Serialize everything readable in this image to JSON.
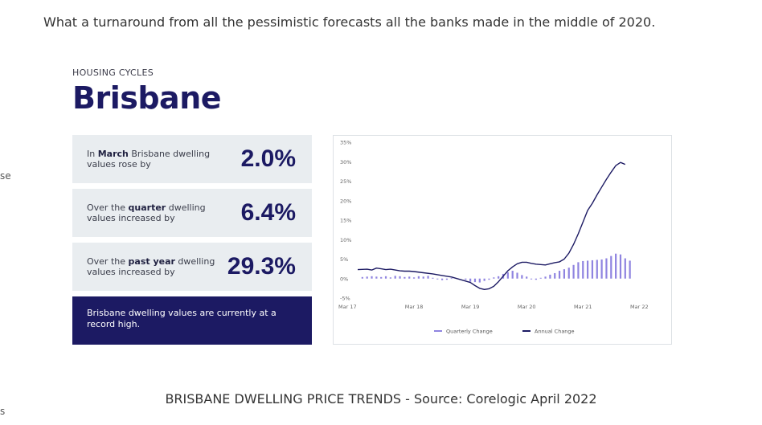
{
  "page": {
    "intro_text": "What a turnaround from all the pessimistic forecasts all the banks made in the middle of 2020.",
    "left_fragment_1": "se",
    "left_fragment_2": "s",
    "caption": "BRISBANE DWELLING PRICE TRENDS - Source: Corelogic April 2022"
  },
  "figure": {
    "kicker": "HOUSING CYCLES",
    "city": "Brisbane",
    "stats": [
      {
        "pre": "In ",
        "bold": "March",
        "post": " Brisbane dwelling values rose by",
        "value": "2.0%"
      },
      {
        "pre": "Over the ",
        "bold": "quarter",
        "post": " dwelling values increased by",
        "value": "6.4%"
      },
      {
        "pre": "Over the ",
        "bold": "past year",
        "post": " dwelling values increased by",
        "value": "29.3%"
      }
    ],
    "record_note": "Brisbane dwelling values are currently at a record high."
  },
  "colors": {
    "navy": "#1c1a63",
    "bars": "#8f84e0",
    "card": "#e9edf0"
  },
  "chart_data": {
    "type": "line",
    "y_tick_labels": [
      "35%",
      "30%",
      "25%",
      "20%",
      "15%",
      "10%",
      "5%",
      "0%",
      "-5%"
    ],
    "y_ticks": [
      35,
      30,
      25,
      20,
      15,
      10,
      5,
      0,
      -5
    ],
    "ylim": [
      -5,
      35
    ],
    "x_tick_labels": [
      "Mar 17",
      "Mar 18",
      "Mar 19",
      "Mar 20",
      "Mar 21",
      "Mar 22"
    ],
    "x_tick_positions": [
      0,
      12,
      24,
      36,
      48,
      60
    ],
    "xlim": [
      0,
      62
    ],
    "series": [
      {
        "name": "Annual Change",
        "kind": "line",
        "points": [
          [
            0,
            2.3
          ],
          [
            2,
            2.4
          ],
          [
            3,
            2.2
          ],
          [
            4,
            2.7
          ],
          [
            5,
            2.5
          ],
          [
            6,
            2.3
          ],
          [
            7,
            2.4
          ],
          [
            9,
            2
          ],
          [
            10,
            1.9
          ],
          [
            11,
            1.9
          ],
          [
            12,
            1.8
          ],
          [
            14,
            1.5
          ],
          [
            16,
            1.2
          ],
          [
            18,
            0.8
          ],
          [
            20,
            0.4
          ],
          [
            22,
            -0.3
          ],
          [
            24,
            -1
          ],
          [
            25,
            -1.8
          ],
          [
            26,
            -2.5
          ],
          [
            27,
            -2.8
          ],
          [
            28,
            -2.6
          ],
          [
            29,
            -2
          ],
          [
            30,
            -0.8
          ],
          [
            31,
            0.6
          ],
          [
            32,
            2
          ],
          [
            33,
            3
          ],
          [
            34,
            3.8
          ],
          [
            35,
            4.2
          ],
          [
            36,
            4.2
          ],
          [
            37,
            3.9
          ],
          [
            38,
            3.7
          ],
          [
            39,
            3.6
          ],
          [
            40,
            3.5
          ],
          [
            41,
            3.8
          ],
          [
            42,
            4.1
          ],
          [
            43,
            4.3
          ],
          [
            44,
            5
          ],
          [
            45,
            6.5
          ],
          [
            46,
            8.8
          ],
          [
            47,
            11.5
          ],
          [
            48,
            14.5
          ],
          [
            49,
            17.5
          ],
          [
            50,
            19.3
          ],
          [
            51,
            21.5
          ],
          [
            52,
            23.5
          ],
          [
            53,
            25.5
          ],
          [
            54,
            27.3
          ],
          [
            55,
            29
          ],
          [
            56,
            29.8
          ],
          [
            57,
            29.3
          ]
        ]
      },
      {
        "name": "Quarterly Change",
        "kind": "bar",
        "points": [
          [
            1,
            0.4
          ],
          [
            2,
            0.5
          ],
          [
            3,
            0.6
          ],
          [
            4,
            0.5
          ],
          [
            5,
            0.4
          ],
          [
            6,
            0.6
          ],
          [
            7,
            0.3
          ],
          [
            8,
            0.7
          ],
          [
            9,
            0.6
          ],
          [
            10,
            0.4
          ],
          [
            11,
            0.5
          ],
          [
            12,
            0.3
          ],
          [
            13,
            0.6
          ],
          [
            14,
            0.5
          ],
          [
            15,
            0.7
          ],
          [
            16,
            0.2
          ],
          [
            17,
            -0.2
          ],
          [
            18,
            -0.4
          ],
          [
            19,
            -0.3
          ],
          [
            20,
            0.1
          ],
          [
            23,
            -0.3
          ],
          [
            24,
            -0.8
          ],
          [
            25,
            -0.9
          ],
          [
            26,
            -1
          ],
          [
            27,
            -0.6
          ],
          [
            28,
            -0.3
          ],
          [
            29,
            0.3
          ],
          [
            30,
            0.6
          ],
          [
            31,
            1.2
          ],
          [
            32,
            1.6
          ],
          [
            33,
            2
          ],
          [
            34,
            1.5
          ],
          [
            35,
            0.9
          ],
          [
            36,
            0.5
          ],
          [
            37,
            -0.2
          ],
          [
            38,
            -0.3
          ],
          [
            39,
            0.2
          ],
          [
            40,
            0.5
          ],
          [
            41,
            1
          ],
          [
            42,
            1.4
          ],
          [
            43,
            2
          ],
          [
            44,
            2.4
          ],
          [
            45,
            2.8
          ],
          [
            46,
            3.5
          ],
          [
            47,
            4.2
          ],
          [
            48,
            4.5
          ],
          [
            49,
            4.6
          ],
          [
            50,
            4.7
          ],
          [
            51,
            4.8
          ],
          [
            52,
            4.9
          ],
          [
            53,
            5.2
          ],
          [
            54,
            5.8
          ],
          [
            55,
            6.4
          ],
          [
            56,
            6.2
          ],
          [
            57,
            5.2
          ],
          [
            58,
            4.6
          ]
        ]
      }
    ],
    "legend": [
      {
        "name": "Quarterly Change",
        "color": "#8f84e0"
      },
      {
        "name": "Annual Change",
        "color": "#1c1a63"
      }
    ],
    "legend_placement": "bottom-center"
  }
}
